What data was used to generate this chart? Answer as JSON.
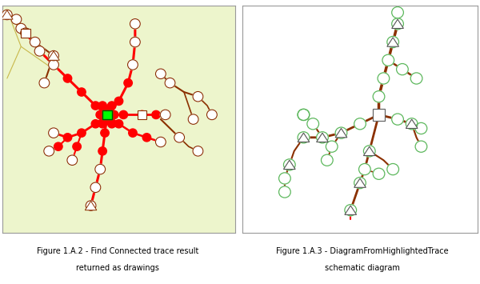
{
  "fig_width": 6.0,
  "fig_height": 3.55,
  "dpi": 100,
  "bg_color": "#ffffff",
  "left_bg": "#edf5cc",
  "border_color": "#999999",
  "caption1_line1": "Figure 1.A.2 - Find Connected trace result",
  "caption1_line2": "returned as drawings",
  "caption2_line1": "Figure 1.A.3 - DiagramFromHighlightedTrace",
  "caption2_line2": "schematic diagram",
  "caption_fontsize": 7.0,
  "dc": "#8B3000",
  "rc": "#FF0000",
  "gc": "#00CC00",
  "yellow": "#C8B84A",
  "node_green": "#90EE90",
  "green_box": "#00FF00"
}
